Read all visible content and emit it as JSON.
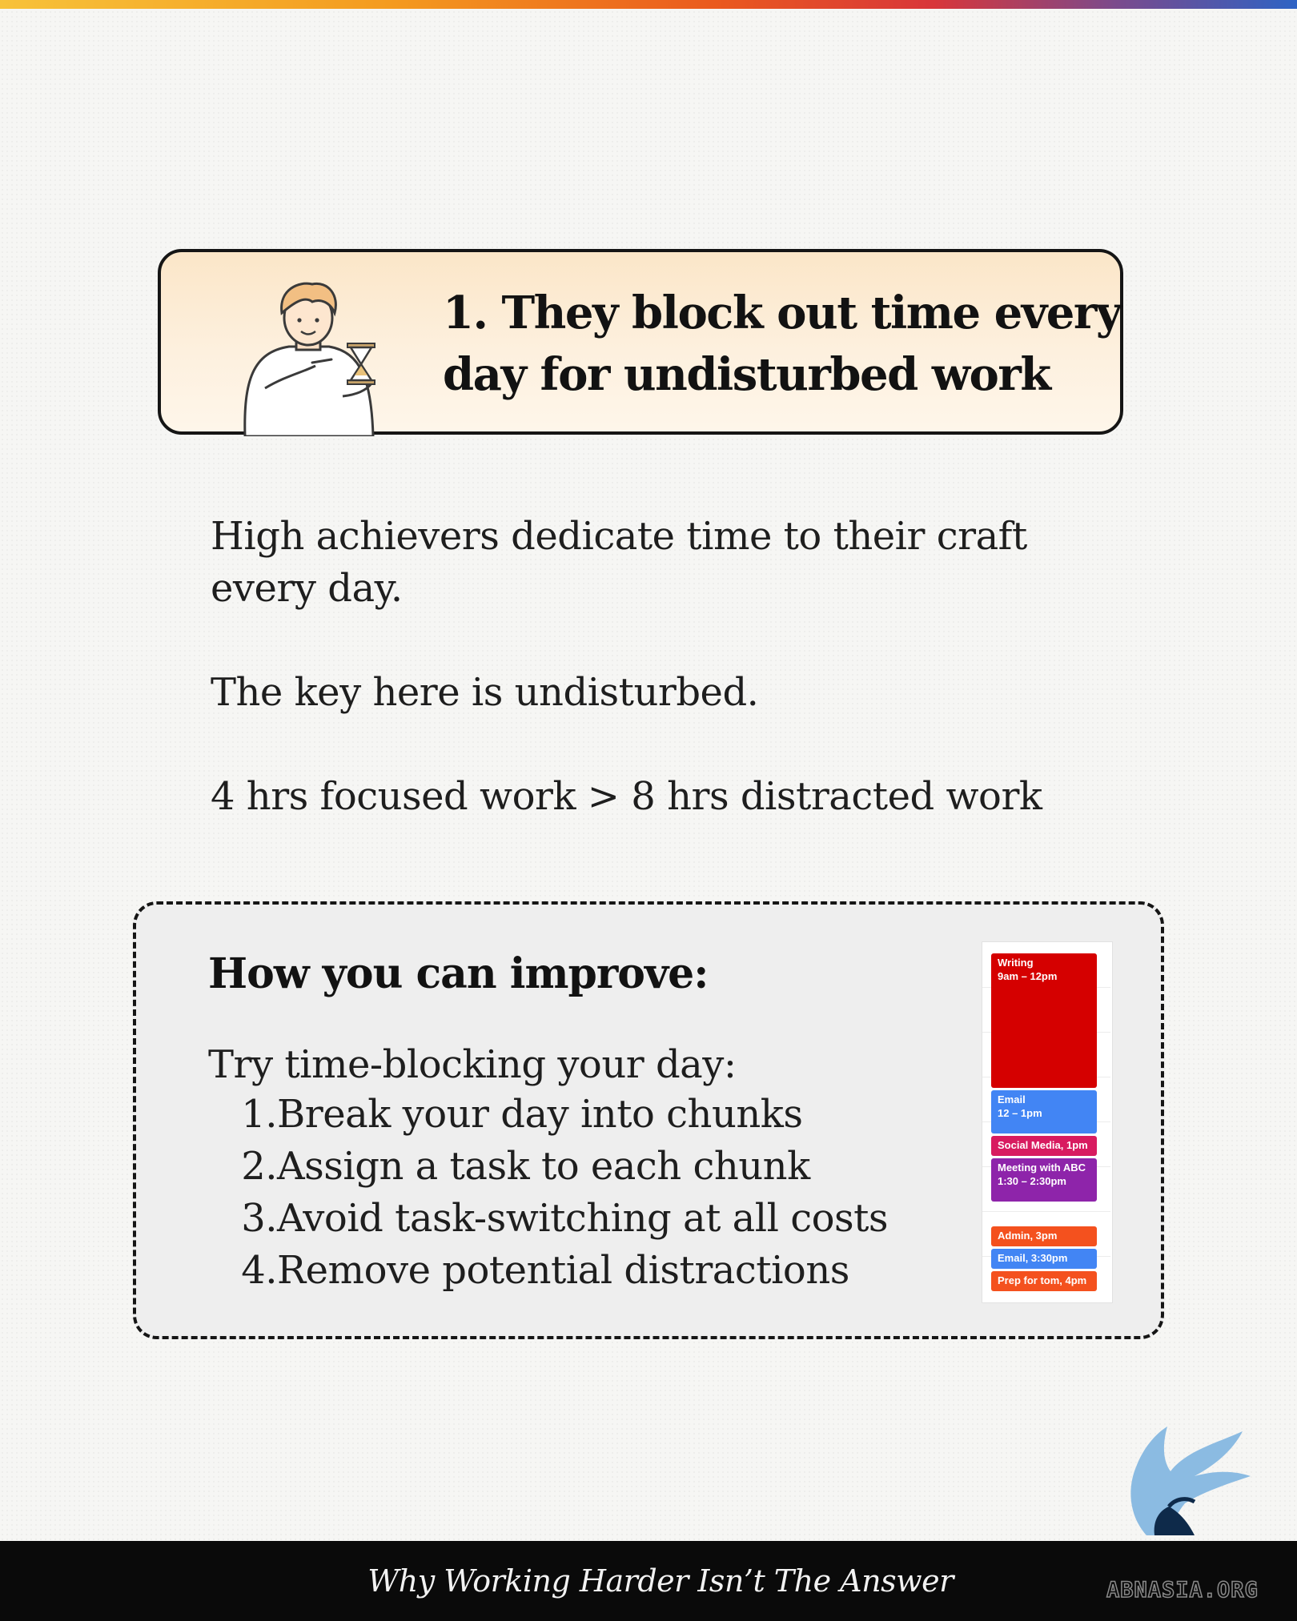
{
  "title": "1. They block out time every day for undisturbed work",
  "title_lines": [
    "1. They block out time every",
    "day for undisturbed work"
  ],
  "body": {
    "line1": "High achievers dedicate time to their craft",
    "line2": "every day.",
    "line3": "The key here is undisturbed.",
    "line4": "4 hrs focused work > 8 hrs distracted work"
  },
  "improve": {
    "heading": "How you can improve:",
    "intro": "Try time-blocking your day:",
    "steps": [
      {
        "num": "1.",
        "text": "Break your day into chunks"
      },
      {
        "num": "2.",
        "text": "Assign a task to each chunk"
      },
      {
        "num": "3.",
        "text": "Avoid task-switching at all costs"
      },
      {
        "num": "4.",
        "text": "Remove potential distractions"
      }
    ]
  },
  "calendar": {
    "events": [
      {
        "title": "Writing",
        "time": "9am – 12pm",
        "color": "#d50000"
      },
      {
        "title": "Email",
        "time": "12 – 1pm",
        "color": "#4285f4"
      },
      {
        "title": "Social Media, 1pm",
        "color": "#d81b60"
      },
      {
        "title": "Meeting with ABC",
        "time": "1:30 – 2:30pm",
        "color": "#8e24aa"
      },
      {
        "title": "Admin, 3pm",
        "color": "#f4511e"
      },
      {
        "title": "Email, 3:30pm",
        "color": "#4285f4"
      },
      {
        "title": "Prep for tom, 4pm",
        "color": "#f4511e"
      }
    ]
  },
  "footer": {
    "title": "Why Working Harder Isn’t The Answer",
    "watermark": "ABNASIA.ORG"
  },
  "colors": {
    "accent_gradient": [
      "#f7c23a",
      "#f49b1f",
      "#ea5a1e",
      "#d8363a",
      "#7b4a8c",
      "#2e63c4"
    ],
    "title_card_bg": "#fdf0de",
    "improve_box_bg": "#eeeeee",
    "logo_blue": "#7fb5e0"
  },
  "icons": [
    "person-holding-hourglass-illustration",
    "griffin-logo-icon"
  ]
}
